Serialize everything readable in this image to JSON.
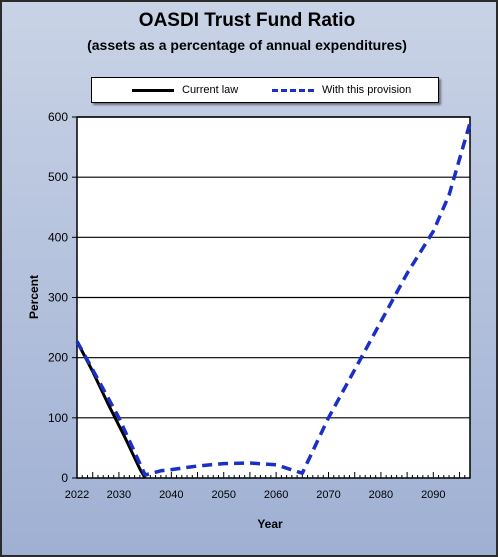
{
  "chart_data": {
    "type": "line",
    "title": "OASDI  Trust Fund Ratio",
    "subtitle": "(assets as a percentage of annual expenditures)",
    "xlabel": "Year",
    "ylabel": "Percent",
    "xlim": [
      2022,
      2097
    ],
    "ylim": [
      0,
      600
    ],
    "x_ticks": [
      2022,
      2030,
      2040,
      2050,
      2060,
      2070,
      2080,
      2090
    ],
    "y_ticks": [
      0,
      100,
      200,
      300,
      400,
      500,
      600
    ],
    "grid": "horizontal",
    "legend_position": "top",
    "series": [
      {
        "name": "Current law",
        "color": "#000000",
        "style": "solid",
        "x": [
          2022,
          2025,
          2028,
          2031,
          2034,
          2035
        ],
        "y": [
          227,
          177,
          122,
          70,
          15,
          0
        ]
      },
      {
        "name": "With this provision",
        "color": "#1a2fc4",
        "style": "dashed",
        "x": [
          2022,
          2025,
          2030,
          2035,
          2038,
          2040,
          2045,
          2050,
          2055,
          2060,
          2065,
          2070,
          2075,
          2080,
          2085,
          2090,
          2093,
          2097
        ],
        "y": [
          227,
          180,
          100,
          5,
          12,
          14,
          20,
          24,
          25,
          22,
          8,
          100,
          180,
          260,
          340,
          410,
          470,
          590
        ]
      }
    ]
  }
}
